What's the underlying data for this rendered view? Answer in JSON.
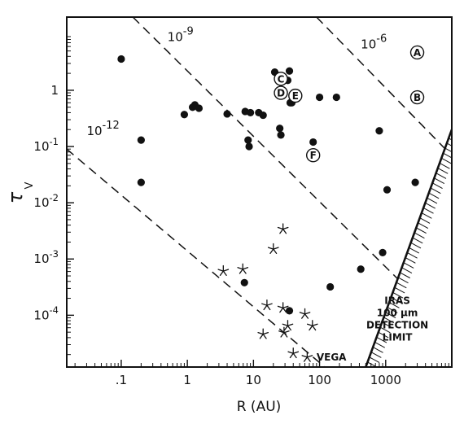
{
  "chart_data": {
    "type": "scatter",
    "xlabel": "R (AU)",
    "ylabel": "τ",
    "ylabel_sub": "V",
    "x_scale": "log",
    "y_scale": "log",
    "xlim": [
      0.015,
      10000
    ],
    "ylim": [
      1.2e-05,
      20
    ],
    "x_ticks": [
      {
        "value": 0.1,
        "label": ".1"
      },
      {
        "value": 1,
        "label": "1"
      },
      {
        "value": 10,
        "label": "10"
      },
      {
        "value": 100,
        "label": "100"
      },
      {
        "value": 1000,
        "label": "1000"
      }
    ],
    "y_ticks": [
      {
        "value": 1,
        "base": "1",
        "exp": ""
      },
      {
        "value": 0.1,
        "base": "10",
        "exp": "-1"
      },
      {
        "value": 0.01,
        "base": "10",
        "exp": "-2"
      },
      {
        "value": 0.001,
        "base": "10",
        "exp": "-3"
      },
      {
        "value": 0.0001,
        "base": "10",
        "exp": "-4"
      }
    ],
    "grid": false,
    "series": [
      {
        "marker": "dot",
        "points": [
          [
            0.1,
            3.6
          ],
          [
            0.2,
            0.13
          ],
          [
            0.2,
            0.023
          ],
          [
            0.9,
            0.37
          ],
          [
            1.2,
            0.5
          ],
          [
            1.3,
            0.55
          ],
          [
            1.5,
            0.48
          ],
          [
            4,
            0.38
          ],
          [
            7.5,
            0.42
          ],
          [
            8.3,
            0.13
          ],
          [
            8.6,
            0.1
          ],
          [
            9,
            0.4
          ],
          [
            12,
            0.4
          ],
          [
            14,
            0.36
          ],
          [
            21,
            2.1
          ],
          [
            25,
            0.21
          ],
          [
            26,
            0.16
          ],
          [
            33,
            1.5
          ],
          [
            35,
            2.2
          ],
          [
            36,
            0.6
          ],
          [
            38,
            0.6
          ],
          [
            80,
            0.12
          ],
          [
            100,
            0.75
          ],
          [
            180,
            0.75
          ],
          [
            800,
            0.19
          ],
          [
            1050,
            0.017
          ],
          [
            2800,
            0.023
          ],
          [
            7.3,
            0.00038
          ],
          [
            145,
            0.00032
          ],
          [
            420,
            0.00066
          ],
          [
            900,
            0.0013
          ],
          [
            35,
            0.00012
          ]
        ]
      },
      {
        "marker": "star",
        "points": [
          [
            3.5,
            0.00061
          ],
          [
            6.9,
            0.00066
          ],
          [
            20,
            0.0015
          ],
          [
            28,
            0.0034
          ],
          [
            16,
            0.00015
          ],
          [
            28,
            0.000135
          ],
          [
            33,
            6.5e-05
          ],
          [
            29,
            4.9e-05
          ],
          [
            14,
            4.6e-05
          ],
          [
            40,
            2.1e-05
          ],
          [
            60,
            0.000105
          ],
          [
            78,
            6.5e-05
          ],
          [
            65,
            1.8e-05
          ]
        ]
      },
      {
        "marker": "letter",
        "points": [
          {
            "label": "A",
            "x": 3000,
            "y": 4.7
          },
          {
            "label": "B",
            "x": 3000,
            "y": 0.75
          },
          {
            "label": "C",
            "x": 26,
            "y": 1.6
          },
          {
            "label": "D",
            "x": 26,
            "y": 0.9
          },
          {
            "label": "E",
            "x": 43,
            "y": 0.8
          },
          {
            "label": "F",
            "x": 80,
            "y": 0.07
          }
        ]
      }
    ],
    "reference_lines": [
      {
        "label_base": "10",
        "label_exp": "-12",
        "x1": 0.015,
        "y1": 0.09,
        "x2": 120,
        "y2": 1.2e-05,
        "label_x": 0.03,
        "label_y": 0.16
      },
      {
        "label_base": "10",
        "label_exp": "-9",
        "x1": 0.15,
        "y1": 20,
        "x2": 1500,
        "y2": 0.00045,
        "label_x": 0.5,
        "label_y": 7.5
      },
      {
        "label_base": "10",
        "label_exp": "-6",
        "x1": 90,
        "y1": 20,
        "x2": 8000,
        "y2": 0.09,
        "label_x": 420,
        "label_y": 5.5
      }
    ],
    "detection_limit": {
      "points": [
        [
          500,
          1.2e-05
        ],
        [
          10000,
          0.2
        ]
      ],
      "label_lines": [
        "IRAS",
        "100 μm",
        "DETECTION",
        "LIMIT"
      ]
    },
    "annotations": [
      {
        "text": "VEGA",
        "x": 90,
        "y": 1.8e-05
      }
    ]
  }
}
